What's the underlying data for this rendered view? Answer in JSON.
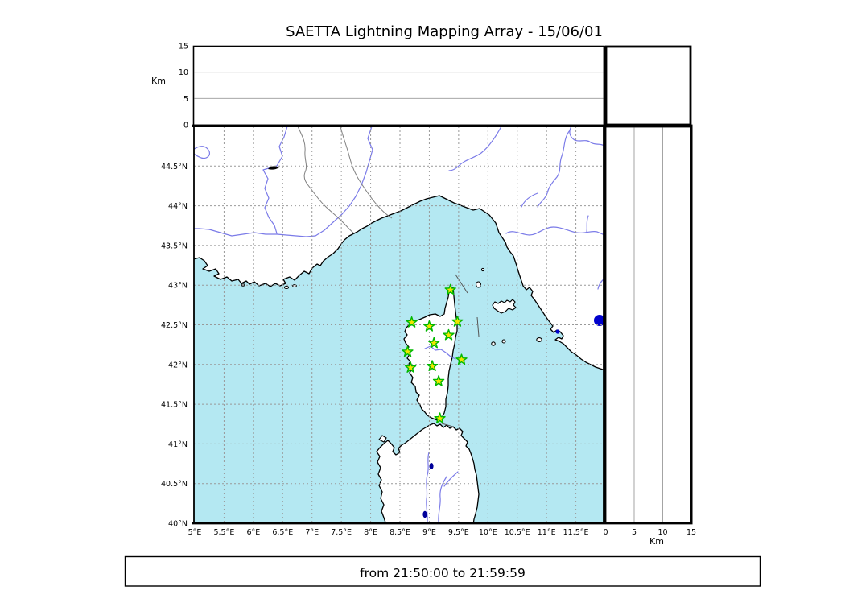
{
  "title": "SAETTA Lightning Mapping Array - 15/06/01",
  "footer": {
    "time_range": "from 21:50:00 to 21:59:59"
  },
  "altitude_axis": {
    "label": "Km",
    "ticks": [
      0,
      5,
      10,
      15
    ],
    "gridlines_km": [
      5,
      10
    ],
    "max_km": 15
  },
  "map": {
    "lon_range": [
      5,
      12
    ],
    "lat_range": [
      40,
      45
    ],
    "lat_ticks": [
      {
        "value": 40,
        "label": "40°N"
      },
      {
        "value": 40.5,
        "label": "40.5°N"
      },
      {
        "value": 41,
        "label": "41°N"
      },
      {
        "value": 41.5,
        "label": "41.5°N"
      },
      {
        "value": 42,
        "label": "42°N"
      },
      {
        "value": 42.5,
        "label": "42.5°N"
      },
      {
        "value": 43,
        "label": "43°N"
      },
      {
        "value": 43.5,
        "label": "43.5°N"
      },
      {
        "value": 44,
        "label": "44°N"
      },
      {
        "value": 44.5,
        "label": "44.5°N"
      }
    ],
    "lon_ticks": [
      {
        "value": 5,
        "label": "5°E"
      },
      {
        "value": 5.5,
        "label": "5.5°E"
      },
      {
        "value": 6,
        "label": "6°E"
      },
      {
        "value": 6.5,
        "label": "6.5°E"
      },
      {
        "value": 7,
        "label": "7°E"
      },
      {
        "value": 7.5,
        "label": "7.5°E"
      },
      {
        "value": 8,
        "label": "8°E"
      },
      {
        "value": 8.5,
        "label": "8.5°E"
      },
      {
        "value": 9,
        "label": "9°E"
      },
      {
        "value": 9.5,
        "label": "9.5°E"
      },
      {
        "value": 10,
        "label": "10°E"
      },
      {
        "value": 10.5,
        "label": "10.5°E"
      },
      {
        "value": 11,
        "label": "11°E"
      },
      {
        "value": 11.5,
        "label": "11.5°E"
      }
    ],
    "stations": [
      {
        "lon": 9.36,
        "lat": 42.94
      },
      {
        "lon": 8.7,
        "lat": 42.53
      },
      {
        "lon": 9.0,
        "lat": 42.48
      },
      {
        "lon": 9.48,
        "lat": 42.54
      },
      {
        "lon": 9.33,
        "lat": 42.37
      },
      {
        "lon": 9.08,
        "lat": 42.27
      },
      {
        "lon": 8.63,
        "lat": 42.16
      },
      {
        "lon": 9.55,
        "lat": 42.06
      },
      {
        "lon": 9.05,
        "lat": 41.98
      },
      {
        "lon": 8.68,
        "lat": 41.96
      },
      {
        "lon": 9.16,
        "lat": 41.79
      },
      {
        "lon": 9.18,
        "lat": 41.32
      }
    ],
    "colors": {
      "sea": "#B4E8F2",
      "land": "#FFFFFF",
      "coast": "#000000",
      "river": "#7B7BE8",
      "admin_border": "#808080",
      "grid": "#999999",
      "lake": "#0000CC",
      "station_fill": "#F2E500",
      "station_stroke": "#00B800"
    }
  },
  "chart_data": {
    "type": "scatter",
    "title": "SAETTA Lightning Mapping Array - 15/06/01",
    "panels": [
      {
        "name": "altitude-vs-longitude",
        "ylabel": "Km",
        "ylim": [
          0,
          15
        ],
        "yticks": [
          0,
          5,
          10,
          15
        ],
        "points": []
      },
      {
        "name": "map",
        "xlim_lon": [
          5,
          12
        ],
        "ylim_lat": [
          40,
          45
        ],
        "station_points_lon_lat": [
          [
            9.36,
            42.94
          ],
          [
            8.7,
            42.53
          ],
          [
            9.0,
            42.48
          ],
          [
            9.48,
            42.54
          ],
          [
            9.33,
            42.37
          ],
          [
            9.08,
            42.27
          ],
          [
            8.63,
            42.16
          ],
          [
            9.55,
            42.06
          ],
          [
            9.05,
            41.98
          ],
          [
            8.68,
            41.96
          ],
          [
            9.16,
            41.79
          ],
          [
            9.18,
            41.32
          ]
        ]
      },
      {
        "name": "altitude-vs-latitude",
        "xlabel": "Km",
        "xlim": [
          0,
          15
        ],
        "xticks": [
          0,
          5,
          10,
          15
        ],
        "points": []
      }
    ],
    "annotation": "from 21:50:00 to 21:59:59"
  }
}
